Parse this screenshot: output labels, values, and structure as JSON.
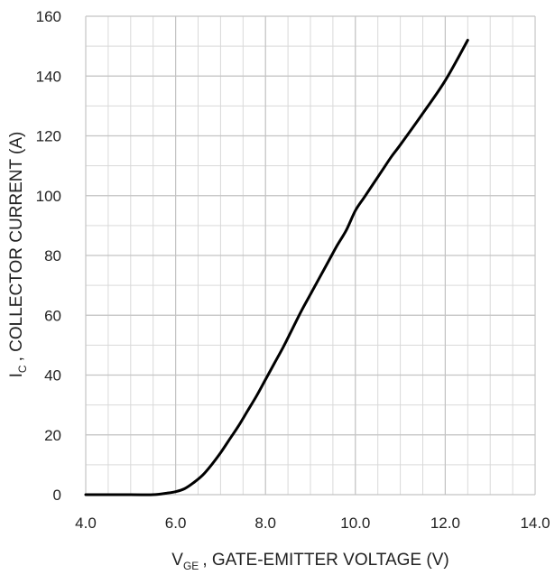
{
  "chart_data": {
    "type": "line",
    "title": "",
    "xlabel": {
      "main": "V",
      "sub": "GE",
      "rest": ", GATE-EMITTER VOLTAGE (V)"
    },
    "ylabel": {
      "main": "I",
      "sub": "C",
      "rest": ", COLLECTOR CURRENT (A)"
    },
    "xlim": [
      4.0,
      14.0
    ],
    "ylim": [
      0,
      160
    ],
    "xticks": [
      4.0,
      6.0,
      8.0,
      10.0,
      12.0,
      14.0
    ],
    "xtick_labels": [
      "4.0",
      "6.0",
      "8.0",
      "10.0",
      "12.0",
      "14.0"
    ],
    "yticks": [
      0,
      20,
      40,
      60,
      80,
      100,
      120,
      140,
      160
    ],
    "ytick_labels": [
      "0",
      "20",
      "40",
      "60",
      "80",
      "100",
      "120",
      "140",
      "160"
    ],
    "x_minor_step": 0.5,
    "y_minor_step": 10,
    "grid": true,
    "line_color": "#000000",
    "grid_color": "#d9d9d9",
    "series": [
      {
        "x": [
          4.0,
          5.0,
          5.5,
          5.8,
          6.0,
          6.2,
          6.4,
          6.6,
          6.8,
          7.0,
          7.2,
          7.4,
          7.6,
          7.8,
          8.0,
          8.2,
          8.4,
          8.6,
          8.8,
          9.0,
          9.2,
          9.4,
          9.6,
          9.8,
          10.0,
          10.2,
          10.4,
          10.6,
          10.8,
          11.0,
          11.5,
          12.0,
          12.5
        ],
        "y": [
          0,
          0,
          0,
          0.5,
          1,
          2,
          4,
          6.5,
          10,
          14,
          18.5,
          23,
          28,
          33,
          38.5,
          44,
          49.5,
          55.5,
          61.5,
          67,
          72.5,
          78,
          83.5,
          88.5,
          95,
          99.5,
          104,
          108.5,
          113,
          117,
          127.5,
          138.5,
          152
        ]
      }
    ]
  }
}
